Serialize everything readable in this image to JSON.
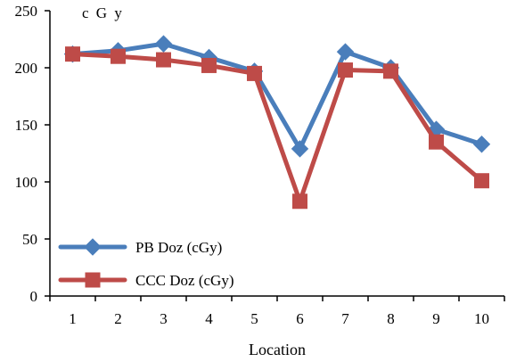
{
  "chart_data": {
    "type": "line",
    "title": "",
    "xlabel": "Location",
    "ylabel": "",
    "unit_label": "c G y",
    "categories": [
      "1",
      "2",
      "3",
      "4",
      "5",
      "6",
      "7",
      "8",
      "9",
      "10"
    ],
    "ylim": [
      0,
      250
    ],
    "yticks": [
      "0",
      "50",
      "100",
      "150",
      "200",
      "250"
    ],
    "grid": false,
    "legend_position": "bottom-left",
    "series": [
      {
        "name": "PB Doz (cGy)",
        "color": "#4a7ebb",
        "marker": "diamond",
        "values": [
          212,
          215,
          221,
          209,
          197,
          129,
          214,
          200,
          146,
          133
        ]
      },
      {
        "name": "CCC Doz (cGy)",
        "color": "#be4b48",
        "marker": "square",
        "values": [
          212,
          210,
          207,
          202,
          195,
          83,
          198,
          197,
          135,
          101
        ]
      }
    ]
  }
}
